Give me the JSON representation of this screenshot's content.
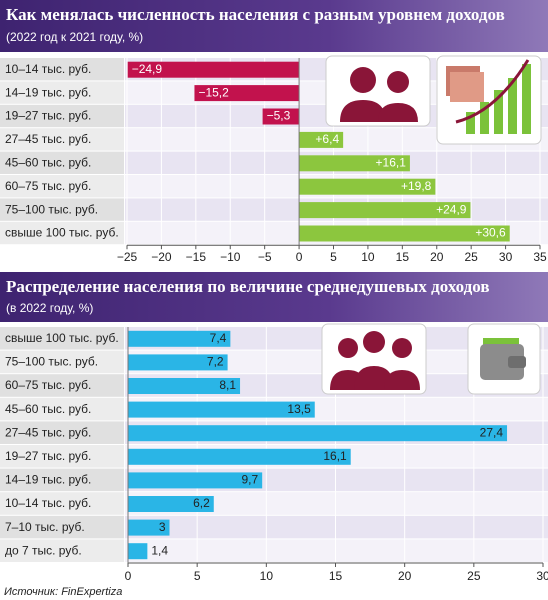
{
  "chart_data": [
    {
      "type": "hbar",
      "title": "Как менялась численность населения с разным уровнем доходов",
      "subtitle": "(2022 год к 2021 году, %)",
      "categories": [
        "10–14 тыс. руб.",
        "14–19 тыс. руб.",
        "19–27 тыс. руб.",
        "27–45 тыс. руб.",
        "45–60 тыс. руб.",
        "60–75 тыс. руб.",
        "75–100 тыс. руб.",
        "свыше 100 тыс. руб."
      ],
      "values": [
        -24.9,
        -15.2,
        -5.3,
        6.4,
        16.1,
        19.8,
        24.9,
        30.6
      ],
      "value_labels": [
        "−24,9",
        "−15,2",
        "−5,3",
        "+6,4",
        "+16,1",
        "+19,8",
        "+24,9",
        "+30,6"
      ],
      "color": "#8cc63e",
      "negative_color": "#c2124d",
      "xlim": [
        -25,
        35
      ],
      "xticks": [
        {
          "value": -25,
          "label": "−25"
        },
        {
          "value": -20,
          "label": "−20"
        },
        {
          "value": -15,
          "label": "−15"
        },
        {
          "value": -10,
          "label": "−10"
        },
        {
          "value": -5,
          "label": "−5"
        },
        0,
        5,
        10,
        15,
        20,
        25,
        30,
        35
      ],
      "grid": true
    },
    {
      "type": "hbar",
      "title": "Распределение населения по величине среднедушевых доходов",
      "subtitle": "(в 2022 году, %)",
      "categories": [
        "свыше 100 тыс. руб.",
        "75–100 тыс. руб.",
        "60–75 тыс. руб.",
        "45–60 тыс. руб.",
        "27–45 тыс. руб.",
        "19–27 тыс. руб.",
        "14–19 тыс. руб.",
        "10–14 тыс. руб.",
        "7–10 тыс. руб.",
        "до 7 тыс. руб."
      ],
      "values": [
        7.4,
        7.2,
        8.1,
        13.5,
        27.4,
        16.1,
        9.7,
        6.2,
        3,
        1.4
      ],
      "value_labels": [
        "7,4",
        "7,2",
        "8,1",
        "13,5",
        "27,4",
        "16,1",
        "9,7",
        "6,2",
        "3",
        "1,4"
      ],
      "color": "#2ab5e6",
      "negative_color": "#2ab5e6",
      "xlim": [
        0,
        30
      ],
      "xticks": [
        0,
        5,
        10,
        15,
        20,
        25,
        30
      ],
      "grid": true
    }
  ],
  "source": "Источник: FinExpertiza"
}
